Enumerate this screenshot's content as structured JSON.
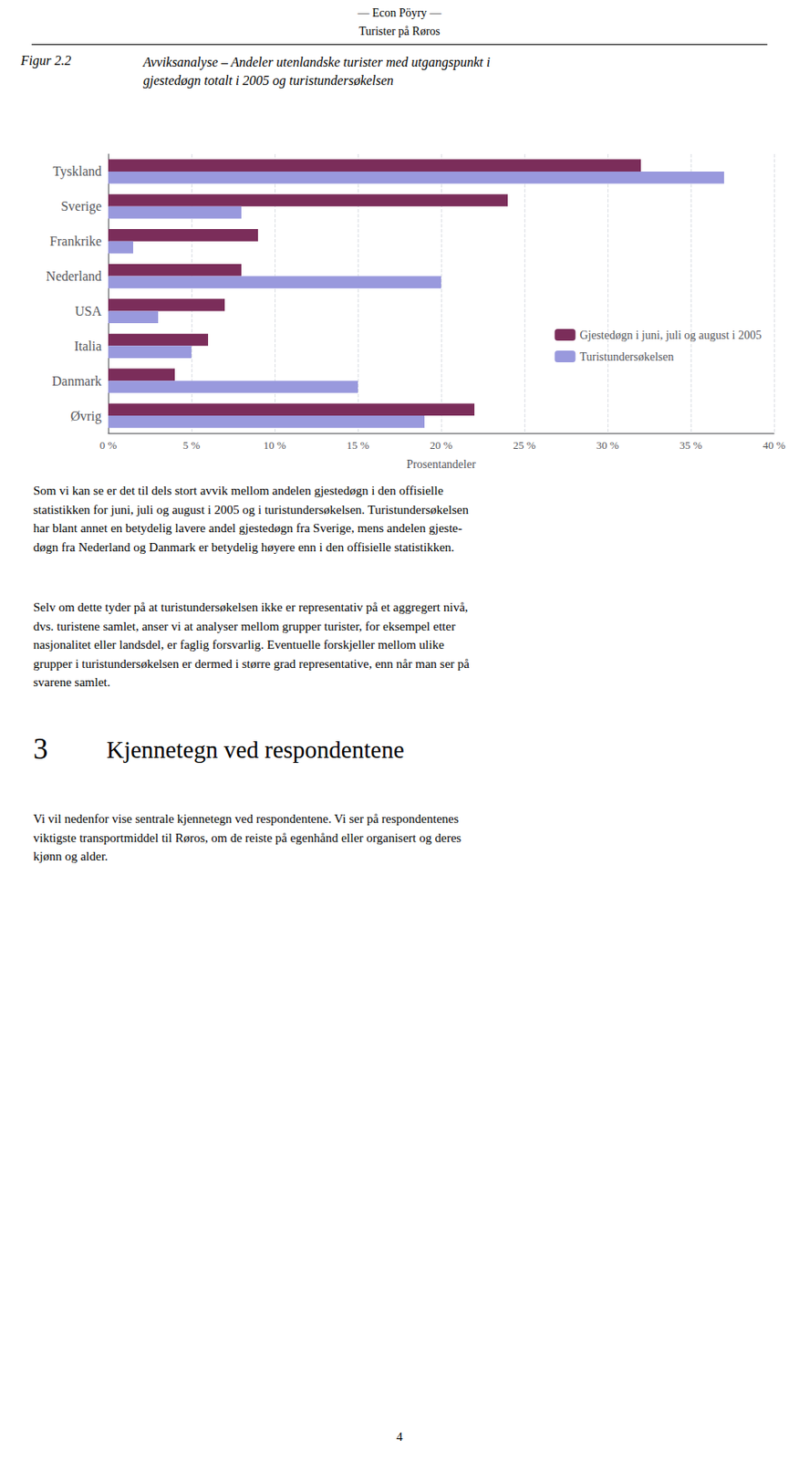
{
  "chart_data": {
    "type": "bar",
    "orientation": "horizontal",
    "title": "Figur 2.2",
    "subtitle": "Avviksanalyse – Andeler utenlandske turister med utgangspunkt i\ngjestedøgn totalt i 2005 og turistundersøkelsen",
    "categories": [
      "Tyskland",
      "Sverige",
      "Frankrike",
      "Nederland",
      "USA",
      "Italia",
      "Danmark",
      "Øvrig"
    ],
    "series": [
      {
        "name": "Gjestedøgn i juni, juli og august i 2005",
        "color": "#7B2D5A",
        "values": [
          0.32,
          0.24,
          0.09,
          0.08,
          0.07,
          0.06,
          0.04,
          0.22
        ]
      },
      {
        "name": "Turistundersøkelsen",
        "color": "#9999DD",
        "values": [
          0.37,
          0.08,
          0.015,
          0.2,
          0.03,
          0.05,
          0.15,
          0.19
        ]
      }
    ],
    "xlabel": "Prosentandeler",
    "xlim": [
      0,
      0.4
    ],
    "xticks": [
      {
        "value": 0.0,
        "label": "0 %"
      },
      {
        "value": 0.05,
        "label": "5 %"
      },
      {
        "value": 0.1,
        "label": "10 %"
      },
      {
        "value": 0.15,
        "label": "15 %"
      },
      {
        "value": 0.2,
        "label": "20 %"
      },
      {
        "value": 0.25,
        "label": "25 %"
      },
      {
        "value": 0.3,
        "label": "30 %"
      },
      {
        "value": 0.35,
        "label": "35 %"
      },
      {
        "value": 0.4,
        "label": "40 %"
      }
    ],
    "grid": true,
    "legend": "lower right",
    "annotations": [
      "— Econ Pöyry —",
      "Turister på Røros",
      "Som vi kan se er det til dels stort avvik mellom andelen gjestedøgn i den offisielle\nstatistikken for juni, juli og august i 2005 og i turistundersøkelsen. Turistundersøkelsen\nhar blant annet en betydelig lavere andel gjestedøgn fra Sverige, mens andelen gjeste-\ndøgn fra Nederland og Danmark er betydelig høyere enn i den offisielle statistikken.",
      "Selv om dette tyder på at turistundersøkelsen ikke er representativ på et aggregert nivå,\ndvs. turistene samlet, anser vi at analyser mellom grupper turister, for eksempel etter\nnasjonalitet eller landsdel, er faglig forsvarlig. Eventuelle forskjeller mellom ulike\ngrupper i turistundersøkelsen er dermed i større grad representative, enn når man ser på\nsvarene samlet.",
      "3",
      "Kjennetegn ved respondentene",
      "Vi vil nedenfor vise sentrale kjennetegn ved respondentene. Vi ser på respondentenes\nviktigste transportmiddel til Røros, om de reiste på egenhånd eller organisert og deres\nkjønn og alder.",
      "4"
    ]
  }
}
